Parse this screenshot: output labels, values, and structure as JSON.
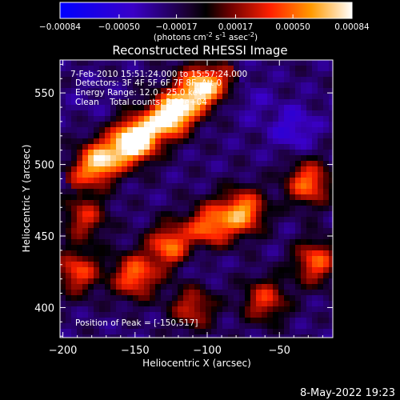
{
  "chart_data": {
    "type": "heatmap",
    "title": "Reconstructed RHESSI Image",
    "xlabel": "Heliocentric X (arcsec)",
    "ylabel": "Heliocentric Y (arcsec)",
    "xlim": [
      -202,
      -13
    ],
    "ylim": [
      379,
      573
    ],
    "x_ticks": [
      -200,
      -150,
      -100,
      -50
    ],
    "y_ticks": [
      400,
      450,
      500,
      550
    ],
    "colorbar": {
      "range": [
        -0.00084,
        0.00084
      ],
      "tick_values": [
        -0.00084,
        -0.0005,
        -0.00017,
        0.00017,
        0.0005,
        0.00084
      ],
      "tick_labels": [
        "-0.00084",
        "-0.00050",
        "-0.00017",
        "0.00017",
        "0.00050",
        "0.00084"
      ],
      "unit_label": "(photons cm-2 s-1 asec-2)"
    },
    "annotations": [
      "7-Feb-2010 15:51:24.000 to 15:57:24.000",
      "Detectors: 3F 4F 5F 6F 7F 8F, Att 0",
      "Energy Range: 12.0 - 25.0 keV",
      "Clean    Total counts: 3.90e+04",
      "Position of Peak = [-150,517]"
    ],
    "bright_regions": [
      {
        "x": -150,
        "y": 517,
        "value": 0.00084
      },
      {
        "x": -125,
        "y": 535,
        "value": 0.0007
      },
      {
        "x": -105,
        "y": 555,
        "value": 0.0006
      },
      {
        "x": -175,
        "y": 502,
        "value": 0.0005
      },
      {
        "x": -75,
        "y": 467,
        "value": 0.0006
      },
      {
        "x": -98,
        "y": 457,
        "value": 0.0005
      },
      {
        "x": -125,
        "y": 443,
        "value": 0.00055
      },
      {
        "x": -150,
        "y": 422,
        "value": 0.0005
      },
      {
        "x": -30,
        "y": 487,
        "value": 0.0005
      },
      {
        "x": -25,
        "y": 432,
        "value": 0.00045
      },
      {
        "x": -190,
        "y": 425,
        "value": 0.0004
      },
      {
        "x": -185,
        "y": 463,
        "value": 0.0003
      },
      {
        "x": -60,
        "y": 405,
        "value": 0.00035
      },
      {
        "x": -110,
        "y": 400,
        "value": 0.0003
      }
    ],
    "dark_regions": [
      {
        "x": -40,
        "y": 525,
        "value": -0.0005
      },
      {
        "x": -70,
        "y": 545,
        "value": -0.00035
      },
      {
        "x": -110,
        "y": 435,
        "value": -0.0004
      },
      {
        "x": -180,
        "y": 545,
        "value": -0.0003
      },
      {
        "x": -45,
        "y": 445,
        "value": -0.00025
      }
    ],
    "grid": false
  },
  "footer": {
    "timestamp": "8-May-2022 19:23"
  }
}
